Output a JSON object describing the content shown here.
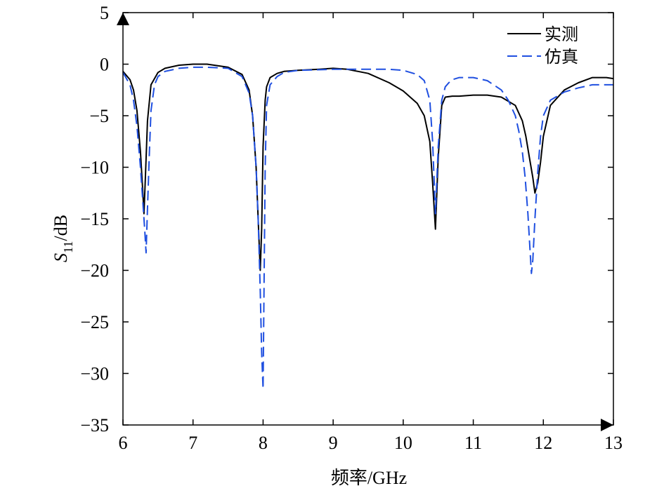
{
  "chart_data": {
    "type": "line",
    "xlabel": "频率/GHz",
    "ylabel": {
      "main": "S",
      "sub": "11",
      "unit": "/dB"
    },
    "xlim": [
      6,
      13
    ],
    "ylim": [
      -35,
      5
    ],
    "xticks": [
      6,
      7,
      8,
      9,
      10,
      11,
      12,
      13
    ],
    "yticks": [
      5,
      0,
      -5,
      -10,
      -15,
      -20,
      -25,
      -30,
      -35
    ],
    "xtick_labels": [
      "6",
      "7",
      "8",
      "9",
      "10",
      "11",
      "12",
      "13"
    ],
    "ytick_labels": [
      "5",
      "0",
      "−5",
      "−10",
      "−15",
      "−20",
      "−25",
      "−30",
      "−35"
    ],
    "legend_position": "top-right",
    "series": [
      {
        "name": "实测",
        "style": "solid",
        "color": "#000000",
        "x": [
          6.0,
          6.1,
          6.15,
          6.2,
          6.25,
          6.28,
          6.3,
          6.32,
          6.35,
          6.4,
          6.5,
          6.6,
          6.8,
          7.0,
          7.2,
          7.5,
          7.7,
          7.8,
          7.85,
          7.9,
          7.93,
          7.96,
          7.98,
          8.0,
          8.03,
          8.05,
          8.1,
          8.2,
          8.3,
          8.5,
          8.8,
          9.0,
          9.2,
          9.5,
          9.8,
          10.0,
          10.2,
          10.3,
          10.38,
          10.42,
          10.46,
          10.5,
          10.55,
          10.6,
          10.7,
          10.8,
          11.0,
          11.2,
          11.4,
          11.6,
          11.7,
          11.75,
          11.8,
          11.85,
          11.88,
          11.92,
          11.96,
          12.0,
          12.1,
          12.3,
          12.5,
          12.7,
          12.9,
          13.0
        ],
        "y": [
          -0.7,
          -1.5,
          -2.5,
          -4.5,
          -8.5,
          -12.0,
          -14.5,
          -11.0,
          -5.5,
          -2.0,
          -0.8,
          -0.4,
          -0.1,
          0.0,
          0.0,
          -0.3,
          -1.0,
          -2.5,
          -5.0,
          -10.0,
          -15.0,
          -20.0,
          -16.0,
          -8.0,
          -3.5,
          -2.2,
          -1.3,
          -0.9,
          -0.7,
          -0.6,
          -0.5,
          -0.4,
          -0.5,
          -0.9,
          -1.8,
          -2.6,
          -3.8,
          -5.0,
          -7.5,
          -11.5,
          -16.0,
          -9.0,
          -4.0,
          -3.2,
          -3.1,
          -3.1,
          -3.0,
          -3.0,
          -3.2,
          -4.0,
          -5.5,
          -7.0,
          -9.0,
          -11.0,
          -12.5,
          -11.5,
          -9.5,
          -7.0,
          -4.0,
          -2.5,
          -1.8,
          -1.3,
          -1.3,
          -1.4
        ]
      },
      {
        "name": "仿真",
        "style": "dashed",
        "color": "#1f4fe0",
        "x": [
          6.0,
          6.1,
          6.15,
          6.2,
          6.25,
          6.28,
          6.3,
          6.31,
          6.33,
          6.35,
          6.38,
          6.4,
          6.45,
          6.5,
          6.6,
          6.8,
          7.0,
          7.2,
          7.5,
          7.7,
          7.8,
          7.85,
          7.9,
          7.93,
          7.96,
          7.98,
          8.0,
          8.03,
          8.05,
          8.1,
          8.2,
          8.3,
          8.5,
          9.0,
          9.5,
          9.8,
          10.0,
          10.2,
          10.3,
          10.38,
          10.42,
          10.46,
          10.5,
          10.55,
          10.6,
          10.65,
          10.7,
          10.8,
          10.9,
          11.0,
          11.2,
          11.4,
          11.5,
          11.6,
          11.65,
          11.7,
          11.74,
          11.78,
          11.81,
          11.83,
          11.85,
          11.88,
          11.92,
          11.96,
          12.0,
          12.1,
          12.3,
          12.5,
          12.7,
          12.9,
          13.0
        ],
        "y": [
          -0.8,
          -2.0,
          -3.5,
          -6.0,
          -10.0,
          -13.0,
          -15.0,
          -16.0,
          -18.3,
          -14.0,
          -8.0,
          -4.5,
          -2.0,
          -1.2,
          -0.7,
          -0.4,
          -0.3,
          -0.3,
          -0.4,
          -1.2,
          -2.8,
          -5.0,
          -10.0,
          -15.0,
          -22.0,
          -28.0,
          -31.5,
          -10.0,
          -4.0,
          -2.0,
          -1.2,
          -0.8,
          -0.6,
          -0.5,
          -0.5,
          -0.5,
          -0.6,
          -1.0,
          -1.6,
          -3.5,
          -7.5,
          -14.5,
          -8.0,
          -3.5,
          -2.2,
          -1.8,
          -1.5,
          -1.3,
          -1.3,
          -1.3,
          -1.6,
          -2.5,
          -3.5,
          -5.0,
          -6.5,
          -8.5,
          -11.0,
          -14.5,
          -18.0,
          -20.3,
          -19.0,
          -15.0,
          -10.5,
          -7.0,
          -5.0,
          -3.5,
          -2.7,
          -2.3,
          -2.0,
          -2.0,
          -2.0
        ]
      }
    ]
  }
}
